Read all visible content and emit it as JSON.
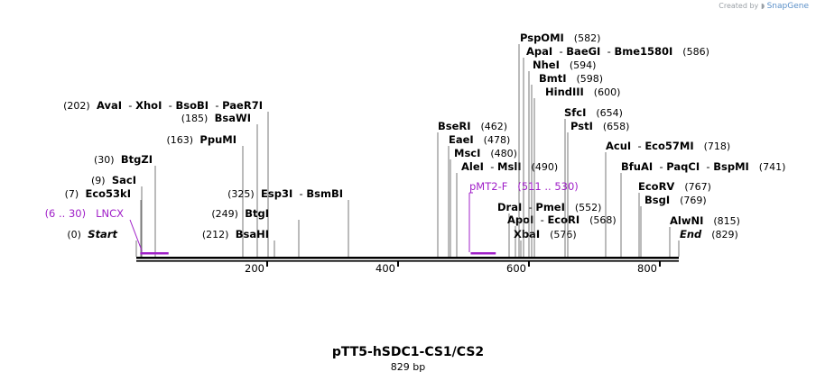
{
  "credit": {
    "prefix": "Created by",
    "brand": "SnapGene",
    "icon": "snapgene-logo-icon"
  },
  "map": {
    "title": "pTT5-hSDC1-CS1/CS2",
    "length_label": "829 bp",
    "length": 829,
    "ticks": [
      200,
      400,
      600,
      800
    ],
    "tick_labels": [
      "200",
      "400",
      "600",
      "800"
    ],
    "colors": {
      "feature": "#a020c8",
      "backbone": "#000000"
    }
  },
  "sites": [
    {
      "pos": 0,
      "pos_label": "(0)",
      "parts": [
        "Start"
      ],
      "italic": true,
      "side": "left"
    },
    {
      "pos": 7,
      "pos_label": "(7)",
      "parts": [
        "Eco53kI"
      ],
      "side": "left"
    },
    {
      "pos": 9,
      "pos_label": "(9)",
      "parts": [
        "SacI"
      ],
      "side": "left"
    },
    {
      "pos": 30,
      "pos_label": "(30)",
      "parts": [
        "BtgZI"
      ],
      "side": "left"
    },
    {
      "pos": 163,
      "pos_label": "(163)",
      "parts": [
        "PpuMI"
      ],
      "side": "left"
    },
    {
      "pos": 185,
      "pos_label": "(185)",
      "parts": [
        "BsaWI"
      ],
      "side": "left"
    },
    {
      "pos": 202,
      "pos_label": "(202)",
      "parts": [
        "AvaI",
        "XhoI",
        "BsoBI",
        "PaeR7I"
      ],
      "side": "left"
    },
    {
      "pos": 212,
      "pos_label": "(212)",
      "parts": [
        "BsaHI"
      ],
      "side": "left"
    },
    {
      "pos": 249,
      "pos_label": "(249)",
      "parts": [
        "BtgI"
      ],
      "side": "left"
    },
    {
      "pos": 325,
      "pos_label": "(325)",
      "parts": [
        "Esp3I",
        "BsmBI"
      ],
      "side": "left"
    },
    {
      "pos": 462,
      "pos_label": "(462)",
      "parts": [
        "BseRI"
      ],
      "side": "right"
    },
    {
      "pos": 478,
      "pos_label": "(478)",
      "parts": [
        "EaeI"
      ],
      "side": "right"
    },
    {
      "pos": 480,
      "pos_label": "(480)",
      "parts": [
        "MscI"
      ],
      "side": "right"
    },
    {
      "pos": 490,
      "pos_label": "(490)",
      "parts": [
        "AleI",
        "MslI"
      ],
      "side": "right"
    },
    {
      "pos": 552,
      "pos_label": "(552)",
      "parts": [
        "DraI",
        "PmeI"
      ],
      "side": "right"
    },
    {
      "pos": 568,
      "pos_label": "(568)",
      "parts": [
        "ApoI",
        "EcoRI"
      ],
      "side": "right"
    },
    {
      "pos": 576,
      "pos_label": "(576)",
      "parts": [
        "XbaI"
      ],
      "side": "right"
    },
    {
      "pos": 582,
      "pos_label": "(582)",
      "parts": [
        "PspOMI"
      ],
      "side": "right"
    },
    {
      "pos": 586,
      "pos_label": "(586)",
      "parts": [
        "ApaI",
        "BaeGI",
        "Bme1580I"
      ],
      "side": "right"
    },
    {
      "pos": 594,
      "pos_label": "(594)",
      "parts": [
        "NheI"
      ],
      "side": "right"
    },
    {
      "pos": 598,
      "pos_label": "(598)",
      "parts": [
        "BmtI"
      ],
      "side": "right"
    },
    {
      "pos": 600,
      "pos_label": "(600)",
      "parts": [
        "HindIII"
      ],
      "side": "right"
    },
    {
      "pos": 654,
      "pos_label": "(654)",
      "parts": [
        "SfcI"
      ],
      "side": "right"
    },
    {
      "pos": 658,
      "pos_label": "(658)",
      "parts": [
        "PstI"
      ],
      "side": "right"
    },
    {
      "pos": 718,
      "pos_label": "(718)",
      "parts": [
        "AcuI",
        "Eco57MI"
      ],
      "side": "right"
    },
    {
      "pos": 741,
      "pos_label": "(741)",
      "parts": [
        "BfuAI",
        "PaqCI",
        "BspMI"
      ],
      "side": "right"
    },
    {
      "pos": 767,
      "pos_label": "(767)",
      "parts": [
        "EcoRV"
      ],
      "side": "right"
    },
    {
      "pos": 769,
      "pos_label": "(769)",
      "parts": [
        "BsgI"
      ],
      "side": "right"
    },
    {
      "pos": 815,
      "pos_label": "(815)",
      "parts": [
        "AlwNI"
      ],
      "side": "right"
    },
    {
      "pos": 829,
      "pos_label": "(829)",
      "parts": [
        "End"
      ],
      "italic": true,
      "side": "right"
    }
  ],
  "features": [
    {
      "name": "LNCX",
      "range_label": "(6 .. 30)",
      "start": 6,
      "end": 30,
      "side": "left"
    },
    {
      "name": "pMT2-F",
      "range_label": "(511 .. 530)",
      "start": 511,
      "end": 530,
      "side": "right"
    }
  ]
}
